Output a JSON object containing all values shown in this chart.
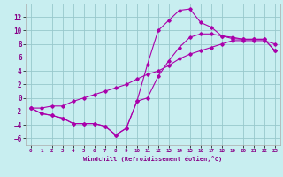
{
  "bg_color": "#c8eef0",
  "grid_color": "#98c8cc",
  "line_color": "#aa00aa",
  "xlim": [
    -0.5,
    23.5
  ],
  "ylim": [
    -7,
    14
  ],
  "xticks": [
    0,
    1,
    2,
    3,
    4,
    5,
    6,
    7,
    8,
    9,
    10,
    11,
    12,
    13,
    14,
    15,
    16,
    17,
    18,
    19,
    20,
    21,
    22,
    23
  ],
  "yticks": [
    -6,
    -4,
    -2,
    0,
    2,
    4,
    6,
    8,
    10,
    12
  ],
  "xlabel": "Windchill (Refroidissement éolien,°C)",
  "curve1_x": [
    0,
    1,
    2,
    3,
    4,
    5,
    6,
    7,
    8,
    9,
    10,
    11,
    12,
    13,
    14,
    15,
    16,
    17,
    18,
    19,
    20,
    21,
    22,
    23
  ],
  "curve1_y": [
    -1.5,
    -2.3,
    -2.6,
    -3.0,
    -3.8,
    -3.8,
    -3.8,
    -4.2,
    -5.5,
    -4.5,
    -0.5,
    5.0,
    10.0,
    11.5,
    13.0,
    13.2,
    11.2,
    10.5,
    9.2,
    8.8,
    8.7,
    8.7,
    8.7,
    7.0
  ],
  "curve2_x": [
    0,
    1,
    2,
    3,
    4,
    5,
    6,
    7,
    8,
    9,
    10,
    11,
    12,
    13,
    14,
    15,
    16,
    17,
    18,
    19,
    20,
    21,
    22,
    23
  ],
  "curve2_y": [
    -1.5,
    -2.3,
    -2.6,
    -3.0,
    -3.8,
    -3.8,
    -3.8,
    -4.2,
    -5.5,
    -4.5,
    -0.5,
    0.0,
    3.2,
    5.5,
    7.5,
    9.0,
    9.5,
    9.5,
    9.2,
    9.0,
    8.7,
    8.7,
    8.7,
    7.0
  ],
  "curve3_x": [
    0,
    1,
    2,
    3,
    4,
    5,
    6,
    7,
    8,
    9,
    10,
    11,
    12,
    13,
    14,
    15,
    16,
    17,
    18,
    19,
    20,
    21,
    22,
    23
  ],
  "curve3_y": [
    -1.5,
    -1.5,
    -1.2,
    -1.2,
    -0.5,
    0.0,
    0.5,
    1.0,
    1.5,
    2.0,
    2.8,
    3.5,
    4.0,
    4.8,
    5.8,
    6.5,
    7.0,
    7.5,
    8.0,
    8.5,
    8.5,
    8.5,
    8.5,
    8.0
  ]
}
